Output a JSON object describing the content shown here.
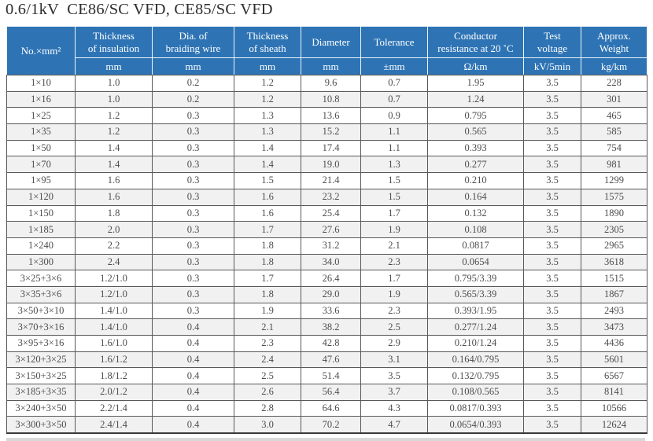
{
  "title": "0.6/1kV  CE86/SC VFD, CE85/SC VFD",
  "colors": {
    "header_bg": "#2e74b5",
    "header_text": "#ffffff",
    "row_stripe": "#f1f1f1",
    "body_text": "#4d4d4d",
    "grid_line": "#595959",
    "cutoff_strip": "#d9d9d9"
  },
  "table": {
    "columns": [
      {
        "label": "No.×mm²",
        "unit": ""
      },
      {
        "label": "Thickness\nof insulation",
        "unit": "mm"
      },
      {
        "label": "Dia. of\nbraiding wire",
        "unit": "mm"
      },
      {
        "label": "Thickness\nof sheath",
        "unit": "mm"
      },
      {
        "label": "Diameter",
        "unit": "mm"
      },
      {
        "label": "Tolerance",
        "unit": "±mm"
      },
      {
        "label": "Conductor\nresistance at 20 ˚C",
        "unit": "Ω/km"
      },
      {
        "label": "Test\nvoltage",
        "unit": "kV/5min"
      },
      {
        "label": "Approx.\nWeight",
        "unit": "kg/km"
      }
    ],
    "rows": [
      [
        "1×10",
        "1.0",
        "0.2",
        "1.2",
        "9.6",
        "0.7",
        "1.95",
        "3.5",
        "228"
      ],
      [
        "1×16",
        "1.0",
        "0.2",
        "1.2",
        "10.8",
        "0.7",
        "1.24",
        "3.5",
        "301"
      ],
      [
        "1×25",
        "1.2",
        "0.3",
        "1.3",
        "13.6",
        "0.9",
        "0.795",
        "3.5",
        "465"
      ],
      [
        "1×35",
        "1.2",
        "0.3",
        "1.3",
        "15.2",
        "1.1",
        "0.565",
        "3.5",
        "585"
      ],
      [
        "1×50",
        "1.4",
        "0.3",
        "1.4",
        "17.4",
        "1.1",
        "0.393",
        "3.5",
        "754"
      ],
      [
        "1×70",
        "1.4",
        "0.3",
        "1.4",
        "19.0",
        "1.3",
        "0.277",
        "3.5",
        "981"
      ],
      [
        "1×95",
        "1.6",
        "0.3",
        "1.5",
        "21.4",
        "1.5",
        "0.210",
        "3.5",
        "1299"
      ],
      [
        "1×120",
        "1.6",
        "0.3",
        "1.6",
        "23.2",
        "1.5",
        "0.164",
        "3.5",
        "1575"
      ],
      [
        "1×150",
        "1.8",
        "0.3",
        "1.6",
        "25.4",
        "1.7",
        "0.132",
        "3.5",
        "1890"
      ],
      [
        "1×185",
        "2.0",
        "0.3",
        "1.7",
        "27.6",
        "1.9",
        "0.108",
        "3.5",
        "2305"
      ],
      [
        "1×240",
        "2.2",
        "0.3",
        "1.8",
        "31.2",
        "2.1",
        "0.0817",
        "3.5",
        "2965"
      ],
      [
        "1×300",
        "2.4",
        "0.3",
        "1.8",
        "34.0",
        "2.3",
        "0.0654",
        "3.5",
        "3618"
      ],
      [
        "3×25+3×6",
        "1.2/1.0",
        "0.3",
        "1.7",
        "26.4",
        "1.7",
        "0.795/3.39",
        "3.5",
        "1515"
      ],
      [
        "3×35+3×6",
        "1.2/1.0",
        "0.3",
        "1.8",
        "29.0",
        "1.9",
        "0.565/3.39",
        "3.5",
        "1867"
      ],
      [
        "3×50+3×10",
        "1.4/1.0",
        "0.3",
        "1.9",
        "33.6",
        "2.3",
        "0.393/1.95",
        "3.5",
        "2493"
      ],
      [
        "3×70+3×16",
        "1.4/1.0",
        "0.4",
        "2.1",
        "38.2",
        "2.5",
        "0.277/1.24",
        "3.5",
        "3473"
      ],
      [
        "3×95+3×16",
        "1.6/1.0",
        "0.4",
        "2.3",
        "42.8",
        "2.9",
        "0.210/1.24",
        "3.5",
        "4436"
      ],
      [
        "3×120+3×25",
        "1.6/1.2",
        "0.4",
        "2.4",
        "47.6",
        "3.1",
        "0.164/0.795",
        "3.5",
        "5601"
      ],
      [
        "3×150+3×25",
        "1.8/1.2",
        "0.4",
        "2.5",
        "51.4",
        "3.5",
        "0.132/0.795",
        "3.5",
        "6567"
      ],
      [
        "3×185+3×35",
        "2.0/1.2",
        "0.4",
        "2.6",
        "56.4",
        "3.7",
        "0.108/0.565",
        "3.5",
        "8141"
      ],
      [
        "3×240+3×50",
        "2.2/1.4",
        "0.4",
        "2.8",
        "64.6",
        "4.3",
        "0.0817/0.393",
        "3.5",
        "10566"
      ],
      [
        "3×300+3×50",
        "2.4/1.4",
        "0.4",
        "3.0",
        "70.2",
        "4.7",
        "0.0654/0.393",
        "3.5",
        "12624"
      ]
    ]
  }
}
